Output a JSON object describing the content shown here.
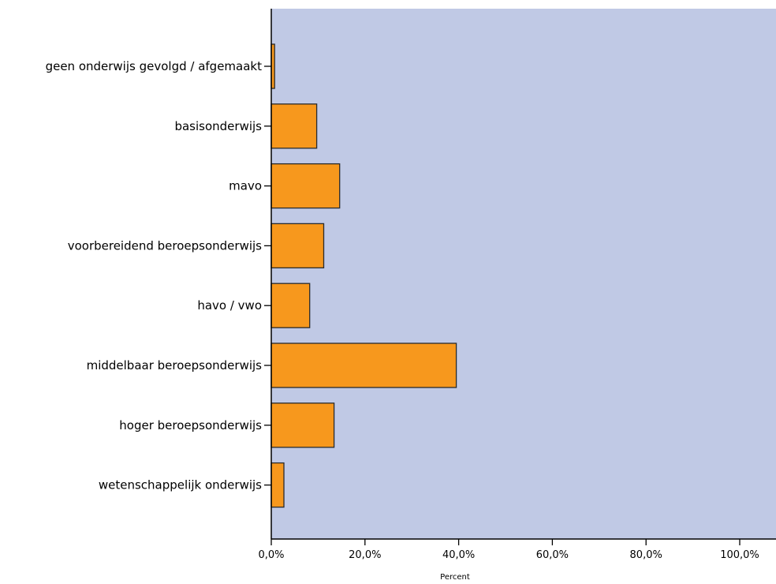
{
  "chart_data": {
    "type": "bar",
    "orientation": "horizontal",
    "categories": [
      "geen onderwijs gevolgd / afgemaakt",
      "basisonderwijs",
      "mavo",
      "voorbereidend beroepsonderwijs",
      "havo / vwo",
      "middelbaar beroepsonderwijs",
      "hoger beroepsonderwijs",
      "wetenschappelijk onderwijs"
    ],
    "values": [
      0.7,
      9.7,
      14.6,
      11.2,
      8.2,
      39.5,
      13.4,
      2.7
    ],
    "xlabel": "Percent",
    "ylabel": "",
    "xlim": [
      0,
      110
    ],
    "x_ticks": [
      {
        "value": 0,
        "label": "0,0%"
      },
      {
        "value": 20,
        "label": "20,0%"
      },
      {
        "value": 40,
        "label": "40,0%"
      },
      {
        "value": 60,
        "label": "60,0%"
      },
      {
        "value": 80,
        "label": "80,0%"
      },
      {
        "value": 100,
        "label": "100,0%"
      }
    ],
    "grid": false,
    "legend": "none",
    "colors": {
      "plot_background": "#c0c9e5",
      "bar_fill": "#f7981d",
      "bar_stroke": "#2b2b2b",
      "axis": "#000000"
    }
  }
}
